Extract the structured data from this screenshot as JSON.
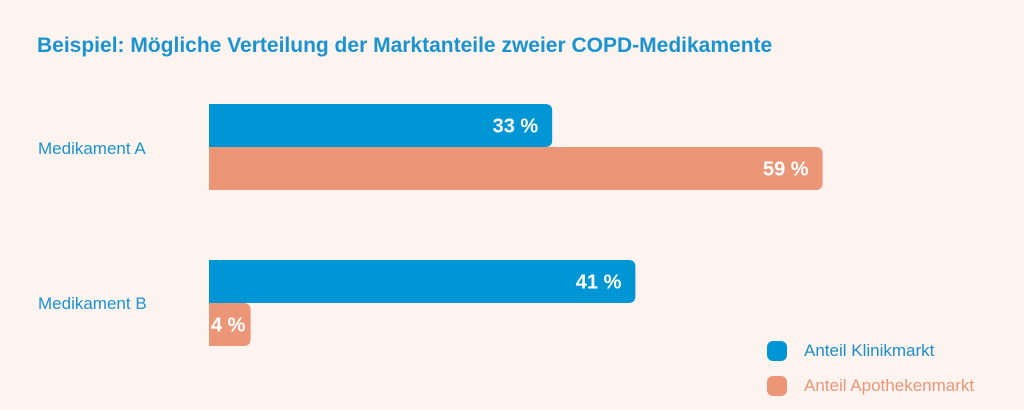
{
  "chart_data": {
    "type": "bar",
    "orientation": "horizontal",
    "title": "Beispiel: Mögliche Verteilung der Marktanteile zweier COPD-Medikamente",
    "categories": [
      "Medikament A",
      "Medikament B"
    ],
    "series": [
      {
        "name": "Anteil Klinikmarkt",
        "color": "#0096d6",
        "values": [
          33,
          41
        ],
        "labels": [
          "33 %",
          "41 %"
        ]
      },
      {
        "name": "Anteil Apothekenmarkt",
        "color": "#ea9677",
        "values": [
          59,
          4
        ],
        "labels": [
          "59 %",
          "4 %"
        ]
      }
    ],
    "xlabel": "",
    "ylabel": "",
    "xlim": [
      0,
      100
    ],
    "unit": "%",
    "grid": false,
    "legend_position": "bottom-right"
  },
  "colors": {
    "background": "#fdf3ef",
    "title": "#1a93d0",
    "category_text": "#1a93d0"
  }
}
